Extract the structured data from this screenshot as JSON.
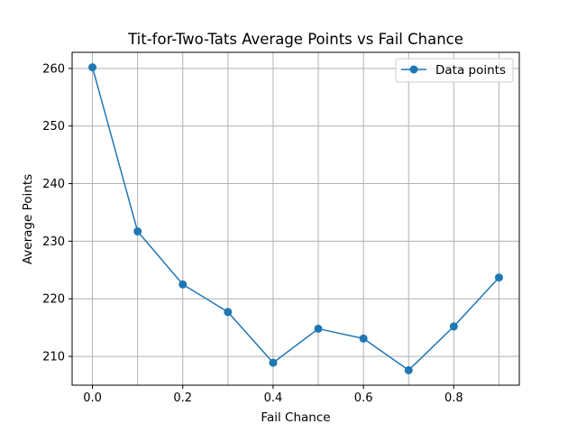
{
  "chart_data": {
    "type": "line",
    "title": "Tit-for-Two-Tats Average Points vs Fail Chance",
    "xlabel": "Fail Chance",
    "ylabel": "Average Points",
    "x": [
      0.0,
      0.1,
      0.2,
      0.3,
      0.4,
      0.5,
      0.6,
      0.7,
      0.8,
      0.9
    ],
    "series": [
      {
        "name": "Data points",
        "values": [
          260.2,
          231.7,
          222.5,
          217.7,
          208.9,
          214.8,
          213.1,
          207.6,
          215.2,
          223.7
        ],
        "color": "#1f77b4",
        "marker": "circle"
      }
    ],
    "xlim": [
      -0.045,
      0.945
    ],
    "ylim": [
      205.0,
      262.8
    ],
    "xticks": [
      0.0,
      0.2,
      0.4,
      0.6,
      0.8
    ],
    "xtick_labels": [
      "0.0",
      "0.2",
      "0.4",
      "0.6",
      "0.8"
    ],
    "yticks": [
      210,
      220,
      230,
      240,
      250,
      260
    ],
    "ytick_labels": [
      "210",
      "220",
      "230",
      "240",
      "250",
      "260"
    ],
    "grid": true,
    "legend_position": "top-right"
  }
}
